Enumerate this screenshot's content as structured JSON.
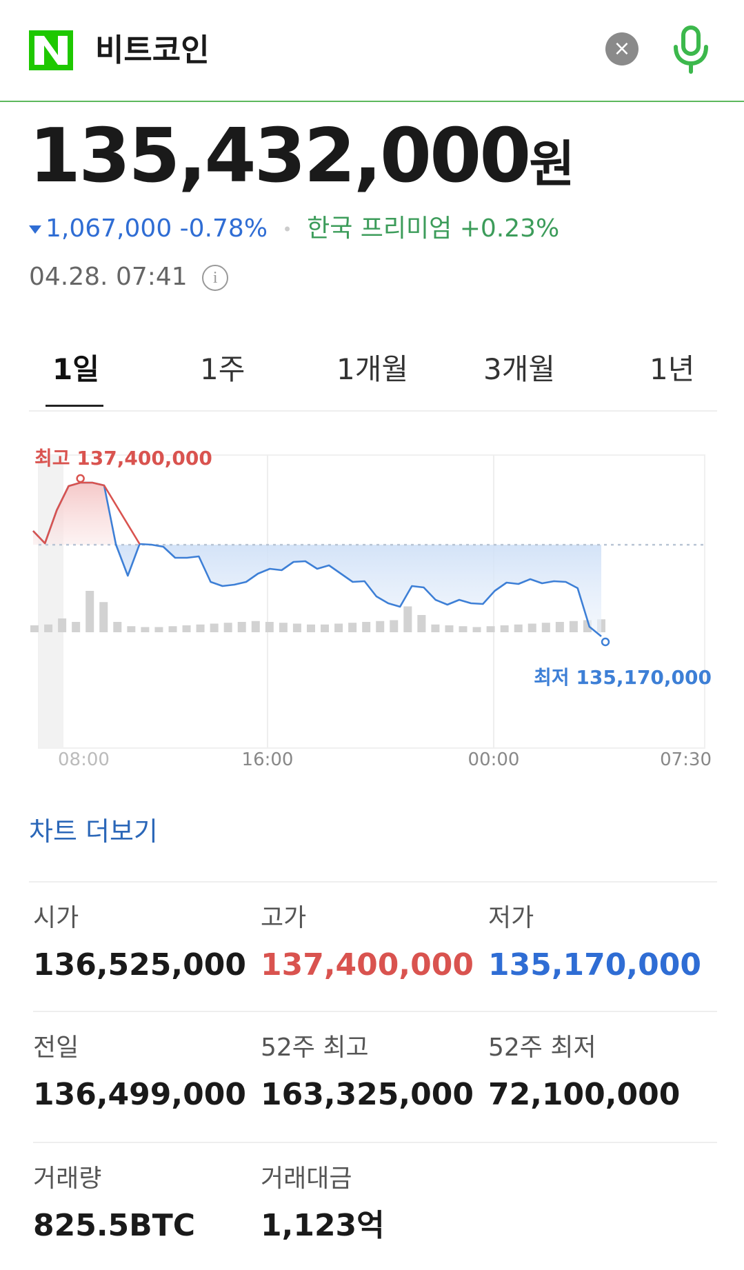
{
  "search": {
    "logo_letter": "N",
    "query": "비트코인",
    "clear_icon": "×",
    "brand_color": "#03c75a"
  },
  "price": {
    "value": "135,432,000",
    "unit": "원"
  },
  "change": {
    "amount": "1,067,000",
    "percent": "-0.78%",
    "premium_label": "한국 프리미엄",
    "premium_value": "+0.23%",
    "timestamp": "04.28. 07:41",
    "info_icon": "i"
  },
  "tabs": [
    "1일",
    "1주",
    "1개월",
    "3개월",
    "1년"
  ],
  "active_tab": "1일",
  "chart_data": {
    "type": "line",
    "high_label": "최고 137,400,000",
    "low_label": "최저 135,170,000",
    "x_ticks": [
      "08:00",
      "16:00",
      "00:00",
      "07:30"
    ],
    "ylim": [
      135000000,
      137600000
    ],
    "reference_value": 136499000,
    "series": [
      {
        "values": [
          136700000,
          136520000,
          137000000,
          137350000,
          137400000,
          137400000,
          137360000,
          136500000,
          136050000,
          136510000,
          136500000,
          136470000,
          136310000,
          136310000,
          136330000,
          135960000,
          135900000,
          135920000,
          135960000,
          136080000,
          136150000,
          136130000,
          136250000,
          136260000,
          136150000,
          136200000,
          136080000,
          135960000,
          135970000,
          135750000,
          135650000,
          135600000,
          135900000,
          135880000,
          135700000,
          135630000,
          135700000,
          135650000,
          135640000,
          135830000,
          135950000,
          135930000,
          136000000,
          135940000,
          135970000,
          135960000,
          135870000,
          135310000,
          135170000
        ]
      }
    ],
    "volume": [
      8,
      9,
      16,
      12,
      48,
      35,
      12,
      7,
      6,
      6,
      7,
      8,
      9,
      10,
      11,
      12,
      13,
      12,
      11,
      10,
      9,
      9,
      10,
      11,
      12,
      13,
      14,
      30,
      20,
      9,
      8,
      7,
      6,
      7,
      8,
      9,
      10,
      11,
      12,
      13,
      14,
      15
    ]
  },
  "more_link": "차트 더보기",
  "stats": [
    {
      "label": "시가",
      "value": "136,525,000",
      "color": "default"
    },
    {
      "label": "고가",
      "value": "137,400,000",
      "color": "red"
    },
    {
      "label": "저가",
      "value": "135,170,000",
      "color": "blue"
    },
    {
      "label": "전일",
      "value": "136,499,000",
      "color": "default"
    },
    {
      "label": "52주 최고",
      "value": "163,325,000",
      "color": "default"
    },
    {
      "label": "52주 최저",
      "value": "72,100,000",
      "color": "default"
    },
    {
      "label": "거래량",
      "value": "825.5BTC",
      "color": "default"
    },
    {
      "label": "거래대금",
      "value": "1,123억",
      "color": "default"
    }
  ]
}
